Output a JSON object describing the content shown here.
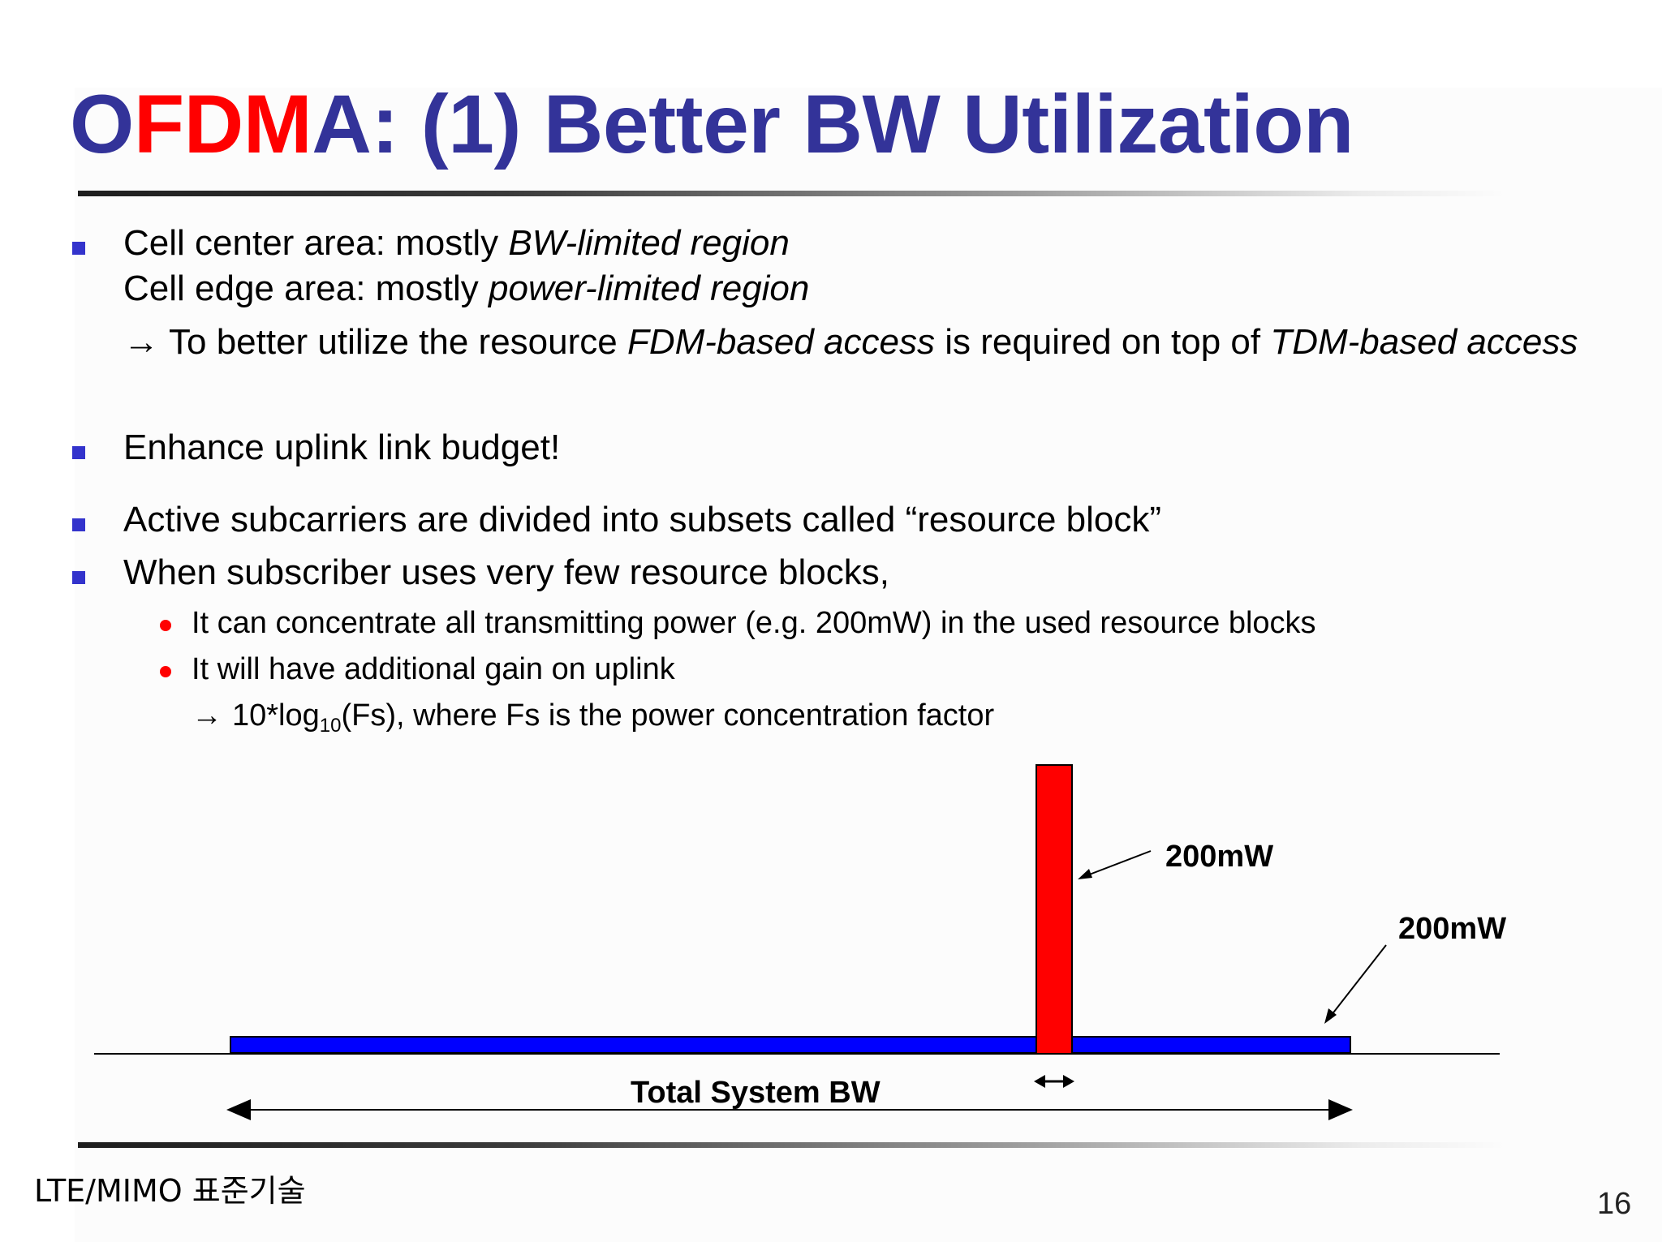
{
  "title": {
    "part_red": "OFDM",
    "part_pre": "O",
    "part_rest": "A: (1) Better BW Utilization"
  },
  "bullets": [
    {
      "line1_a": "Cell center area: mostly ",
      "line1_em": "BW-limited region",
      "line2_a": "Cell edge area: mostly ",
      "line2_em": "power-limited region",
      "line3_arrow": "→",
      "line3_a": "To better utilize the resource ",
      "line3_em1": "FDM-based access",
      "line3_b": " is required on top of ",
      "line3_em2": "TDM-based access"
    },
    {
      "text": "Enhance uplink link budget!"
    },
    {
      "text": "Active subcarriers are divided into subsets called “resource block”"
    },
    {
      "text": "When subscriber uses very few resource blocks,",
      "sub": [
        {
          "text": "It can concentrate all transmitting power (e.g. 200mW) in the used resource blocks"
        },
        {
          "text": "It will have additional gain on uplink"
        }
      ],
      "note_arrow": "→",
      "note_a": "10*log",
      "note_sub": "10",
      "note_b": "(Fs), where Fs is the power concentration factor"
    }
  ],
  "diagram": {
    "label_peak": "200mW",
    "label_flat": "200mW",
    "label_bw": "Total System BW",
    "colors": {
      "flat_bar": "#0000ff",
      "peak_bar": "#ff0000"
    }
  },
  "footer": {
    "left": "LTE/MIMO 표준기술",
    "page": "16"
  }
}
